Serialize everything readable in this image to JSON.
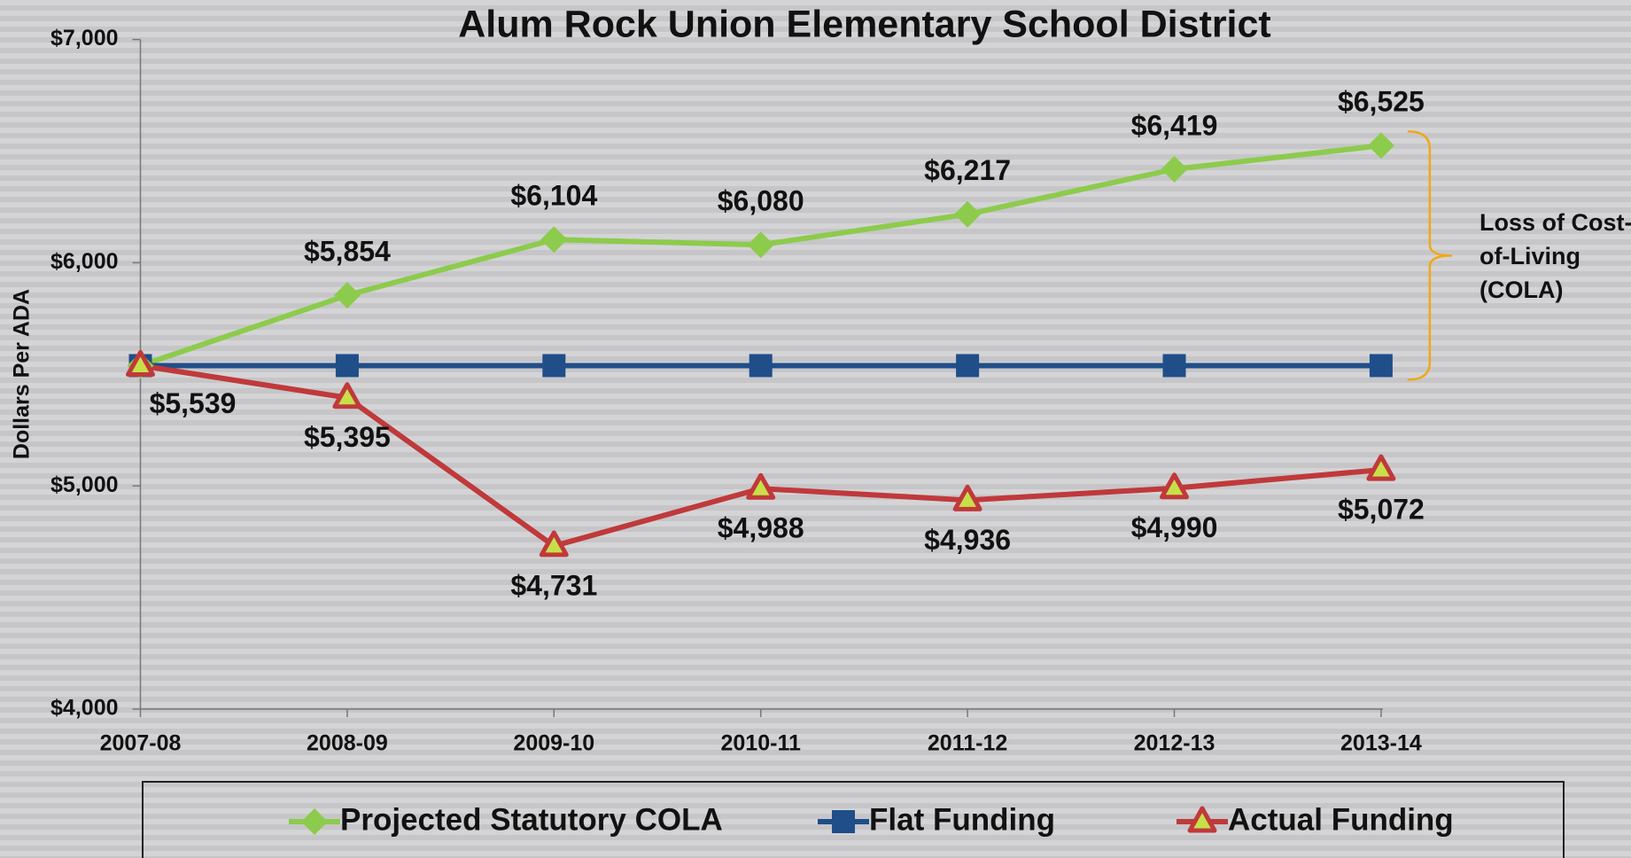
{
  "chart_data": {
    "type": "line",
    "title": "Alum Rock Union Elementary School District",
    "y_label": "Dollars Per ADA",
    "categories": [
      "2007-08",
      "2008-09",
      "2009-10",
      "2010-11",
      "2011-12",
      "2012-13",
      "2013-14"
    ],
    "series": [
      {
        "name": "Projected Statutory COLA",
        "color": "#8dcb4c",
        "marker": "diamond",
        "values": [
          5539,
          5854,
          6104,
          6080,
          6217,
          6419,
          6525
        ],
        "value_labels": [
          null,
          "$5,854",
          "$6,104",
          "$6,080",
          "$6,217",
          "$6,419",
          "$6,525"
        ]
      },
      {
        "name": "Flat Funding",
        "color": "#1f4e89",
        "marker": "square",
        "values": [
          5539,
          5539,
          5539,
          5539,
          5539,
          5539,
          5539
        ],
        "value_labels": [
          "$5,539",
          null,
          null,
          null,
          null,
          null,
          null
        ]
      },
      {
        "name": "Actual Funding",
        "color": "#c0393b",
        "marker": "triangle",
        "values": [
          5539,
          5395,
          4731,
          4988,
          4936,
          4990,
          5072
        ],
        "value_labels": [
          null,
          "$5,395",
          "$4,731",
          "$4,988",
          "$4,936",
          "$4,990",
          "$5,072"
        ]
      }
    ],
    "ylim": [
      4000,
      7000
    ],
    "yticks": [
      {
        "value": 4000,
        "label": "$4,000"
      },
      {
        "value": 5000,
        "label": "$5,000"
      },
      {
        "value": 6000,
        "label": "$6,000"
      },
      {
        "value": 7000,
        "label": "$7,000"
      }
    ],
    "annotation": [
      "Loss of Cost-",
      "of-Living",
      "(COLA)"
    ],
    "legend": "bottom"
  }
}
